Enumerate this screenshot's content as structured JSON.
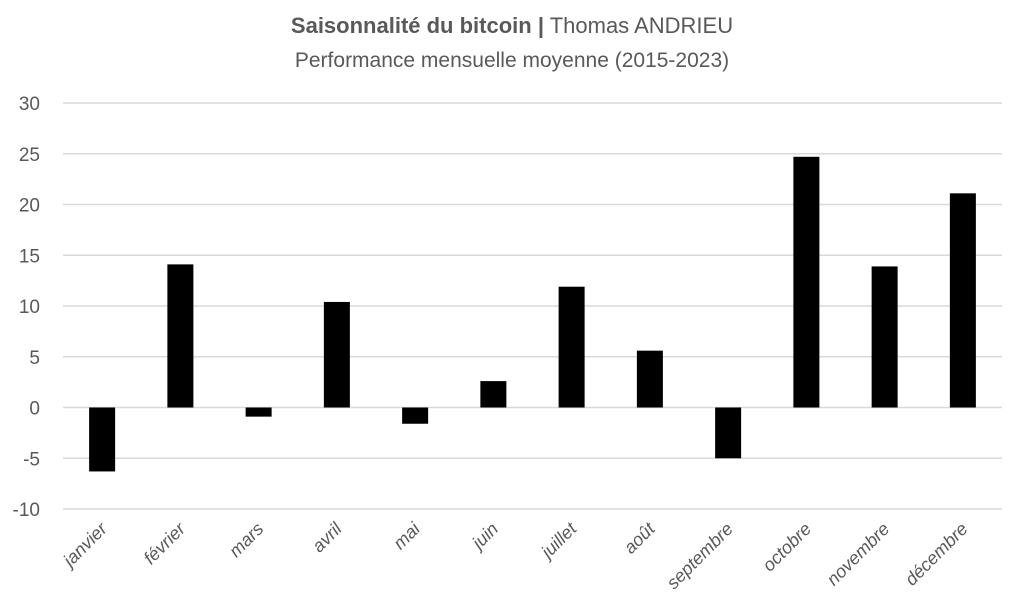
{
  "chart_data": {
    "type": "bar",
    "title": "Saisonnalité du bitcoin",
    "title_separator": "|",
    "author": "Thomas ANDRIEU",
    "subtitle": "Performance mensuelle moyenne (2015-2023)",
    "categories": [
      "janvier",
      "février",
      "mars",
      "avril",
      "mai",
      "juin",
      "juillet",
      "août",
      "septembre",
      "octobre",
      "novembre",
      "décembre"
    ],
    "values": [
      -6.3,
      14.1,
      -0.9,
      10.4,
      -1.6,
      2.6,
      11.9,
      5.6,
      -5.0,
      24.7,
      13.9,
      21.1
    ],
    "ylim": [
      -10,
      30
    ],
    "yticks": [
      30,
      25,
      20,
      15,
      10,
      5,
      0,
      -5,
      -10
    ],
    "grid": true,
    "bar_color": "#000000",
    "grid_color": "#d9d9d9",
    "text_color": "#595959"
  }
}
